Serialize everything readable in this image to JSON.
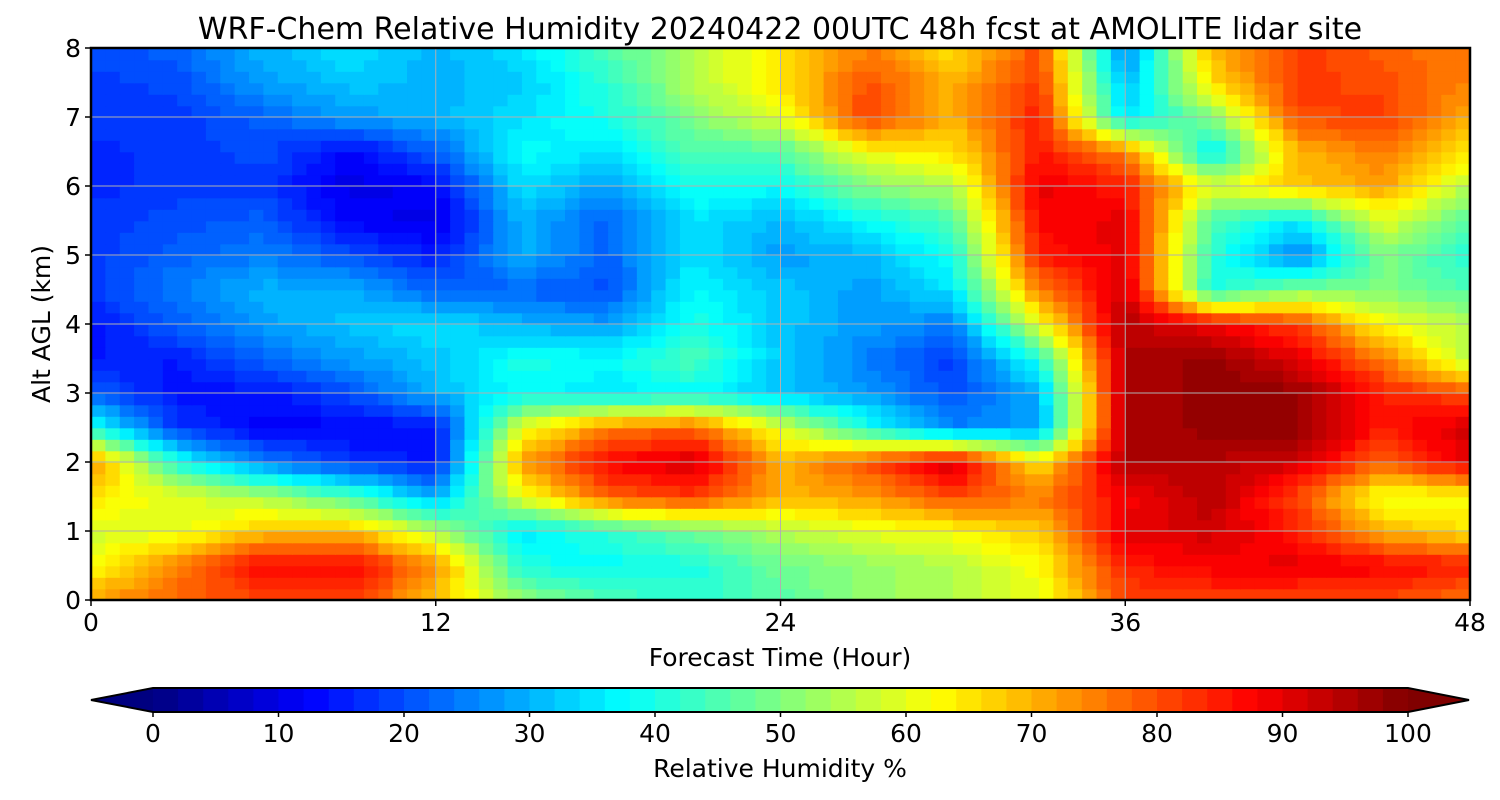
{
  "chart_data": {
    "type": "heatmap",
    "title": "WRF-Chem Relative Humidity 20240422 00UTC 48h fcst at AMOLITE lidar site",
    "xlabel": "Forecast Time (Hour)",
    "ylabel": "Alt AGL (km)",
    "xlim": [
      0,
      48
    ],
    "ylim": [
      0,
      8
    ],
    "xticks": [
      0,
      12,
      24,
      36,
      48
    ],
    "yticks": [
      0,
      1,
      2,
      3,
      4,
      5,
      6,
      7,
      8
    ],
    "grid": true,
    "colorbar": {
      "label": "Relative Humidity %",
      "ticks": [
        0,
        10,
        20,
        30,
        40,
        50,
        60,
        70,
        80,
        90,
        100
      ],
      "range": [
        0,
        100
      ],
      "extend": "both",
      "colormap": "jet",
      "orientation": "horizontal"
    },
    "x": [
      0,
      3,
      6,
      9,
      12,
      15,
      18,
      21,
      24,
      27,
      30,
      33,
      36,
      39,
      42,
      45,
      48
    ],
    "y": [
      0,
      0.5,
      1,
      1.5,
      2,
      2.5,
      3,
      3.5,
      4,
      4.5,
      5,
      5.5,
      6,
      6.5,
      7,
      7.5,
      8
    ],
    "z": [
      [
        72,
        78,
        80,
        82,
        68,
        52,
        45,
        42,
        46,
        52,
        55,
        60,
        80,
        82,
        80,
        80,
        76
      ],
      [
        62,
        75,
        88,
        88,
        74,
        40,
        38,
        40,
        48,
        52,
        55,
        62,
        85,
        88,
        90,
        88,
        85
      ],
      [
        58,
        60,
        68,
        70,
        55,
        35,
        42,
        48,
        55,
        60,
        62,
        68,
        90,
        92,
        85,
        70,
        65
      ],
      [
        65,
        60,
        55,
        45,
        30,
        60,
        78,
        82,
        70,
        72,
        80,
        75,
        88,
        95,
        80,
        60,
        62
      ],
      [
        75,
        40,
        25,
        18,
        14,
        72,
        88,
        92,
        70,
        80,
        93,
        65,
        95,
        95,
        92,
        78,
        90
      ],
      [
        40,
        18,
        12,
        12,
        14,
        60,
        75,
        78,
        60,
        40,
        25,
        28,
        95,
        98,
        98,
        85,
        92
      ],
      [
        22,
        14,
        14,
        20,
        30,
        38,
        35,
        38,
        32,
        28,
        20,
        30,
        95,
        98,
        98,
        85,
        80
      ],
      [
        15,
        15,
        22,
        28,
        32,
        40,
        38,
        45,
        32,
        25,
        18,
        40,
        95,
        98,
        90,
        75,
        55
      ],
      [
        14,
        22,
        28,
        32,
        35,
        30,
        28,
        40,
        32,
        28,
        25,
        60,
        95,
        88,
        82,
        62,
        55
      ],
      [
        18,
        25,
        30,
        30,
        22,
        22,
        20,
        38,
        32,
        28,
        35,
        75,
        92,
        40,
        50,
        50,
        45
      ],
      [
        18,
        22,
        25,
        20,
        15,
        30,
        22,
        35,
        28,
        30,
        40,
        85,
        90,
        42,
        25,
        50,
        40
      ],
      [
        18,
        20,
        22,
        12,
        10,
        30,
        22,
        35,
        30,
        38,
        45,
        88,
        90,
        45,
        35,
        60,
        45
      ],
      [
        16,
        18,
        18,
        10,
        12,
        35,
        28,
        40,
        38,
        50,
        55,
        90,
        85,
        60,
        68,
        72,
        55
      ],
      [
        16,
        18,
        20,
        12,
        22,
        38,
        35,
        45,
        45,
        62,
        65,
        85,
        75,
        35,
        70,
        75,
        65
      ],
      [
        18,
        18,
        22,
        28,
        30,
        35,
        40,
        50,
        60,
        82,
        70,
        85,
        35,
        50,
        80,
        82,
        70
      ],
      [
        18,
        20,
        28,
        32,
        30,
        32,
        42,
        55,
        65,
        80,
        70,
        82,
        30,
        65,
        82,
        80,
        75
      ],
      [
        20,
        22,
        30,
        35,
        30,
        35,
        45,
        55,
        65,
        75,
        65,
        80,
        25,
        70,
        82,
        78,
        75
      ]
    ]
  }
}
